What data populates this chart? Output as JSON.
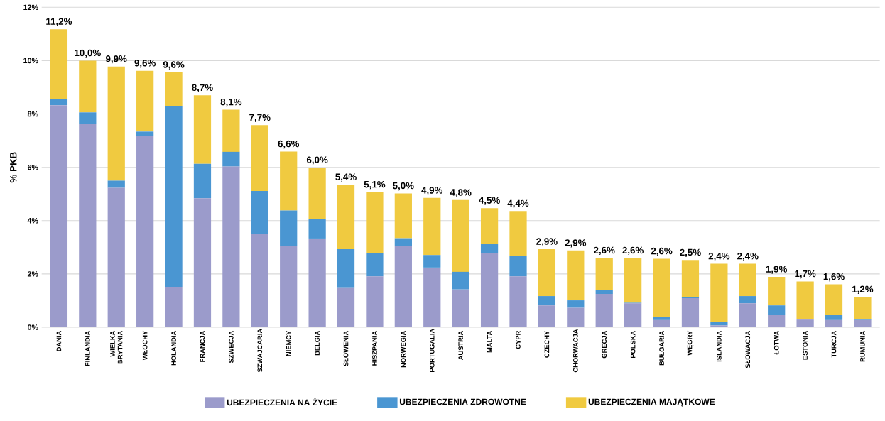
{
  "chart_data": {
    "type": "bar",
    "stacked": true,
    "ylabel": "% PKB",
    "categories": [
      "DANIA",
      "FINLANDIA",
      "WIELKA BRYTANIA",
      "WŁOCHY",
      "HOLANDIA",
      "FRANCJA",
      "SZWECJA",
      "SZWAJCARIA",
      "NIEMCY",
      "BELGIA",
      "SŁOWENIA",
      "HISZPANIA",
      "NORWEGIA",
      "PORTUGALIA",
      "AUSTRIA",
      "MALTA",
      "CYPR",
      "CZECHY",
      "CHORWACJA",
      "GRECJA",
      "POLSKA",
      "BUŁGARIA",
      "WĘGRY",
      "ISLANDIA",
      "SŁOWACJA",
      "ŁOTWA",
      "ESTONIA",
      "TURCJA",
      "RUMUNIA"
    ],
    "series": [
      {
        "name": "UBEZPIECZENIA NA ŻYCIE",
        "color": "#9b9bcb",
        "values": [
          8.33,
          7.62,
          5.23,
          7.18,
          1.52,
          4.84,
          6.03,
          3.5,
          3.06,
          3.33,
          1.5,
          1.91,
          3.04,
          2.24,
          1.42,
          2.79,
          1.91,
          0.82,
          0.73,
          1.25,
          0.9,
          0.27,
          1.09,
          0.07,
          0.9,
          0.46,
          0.29,
          0.27,
          0.27
        ]
      },
      {
        "name": "UBEZPIECZENIA ZDROWOTNE",
        "color": "#4a96d2",
        "values": [
          0.22,
          0.44,
          0.27,
          0.16,
          6.76,
          1.29,
          0.55,
          1.61,
          1.32,
          0.72,
          1.43,
          0.86,
          0.3,
          0.47,
          0.66,
          0.33,
          0.77,
          0.35,
          0.28,
          0.14,
          0.02,
          0.11,
          0.04,
          0.14,
          0.27,
          0.36,
          0,
          0.19,
          0.02
        ]
      },
      {
        "name": "UBEZPIECZENIA MAJĄTKOWE",
        "color": "#f0ca40",
        "values": [
          2.63,
          1.94,
          4.28,
          2.28,
          1.28,
          2.57,
          1.58,
          2.47,
          2.21,
          1.94,
          2.42,
          2.3,
          1.68,
          2.14,
          2.69,
          1.35,
          1.68,
          1.76,
          1.87,
          1.21,
          1.68,
          2.19,
          1.39,
          2.17,
          1.21,
          1.07,
          1.43,
          1.15,
          0.85
        ]
      }
    ],
    "totals": [
      "11,2%",
      "10,0%",
      "9,9%",
      "9,6%",
      "9,6%",
      "8,7%",
      "8,1%",
      "7,7%",
      "6,6%",
      "6,0%",
      "5,4%",
      "5,1%",
      "5,0%",
      "4,9%",
      "4,8%",
      "4,5%",
      "4,4%",
      "2,9%",
      "2,9%",
      "2,6%",
      "2,6%",
      "2,6%",
      "2,5%",
      "2,4%",
      "2,4%",
      "1,9%",
      "1,7%",
      "1,6%",
      "1,2%"
    ],
    "ylim": [
      0,
      12
    ],
    "yticks": [
      {
        "value": 0,
        "label": "0%"
      },
      {
        "value": 2,
        "label": "2%"
      },
      {
        "value": 4,
        "label": "4%"
      },
      {
        "value": 6,
        "label": "6%"
      },
      {
        "value": 8,
        "label": "8%"
      },
      {
        "value": 10,
        "label": "10%"
      },
      {
        "value": 12,
        "label": "12%"
      }
    ],
    "grid": "y",
    "legend": "bottom"
  }
}
